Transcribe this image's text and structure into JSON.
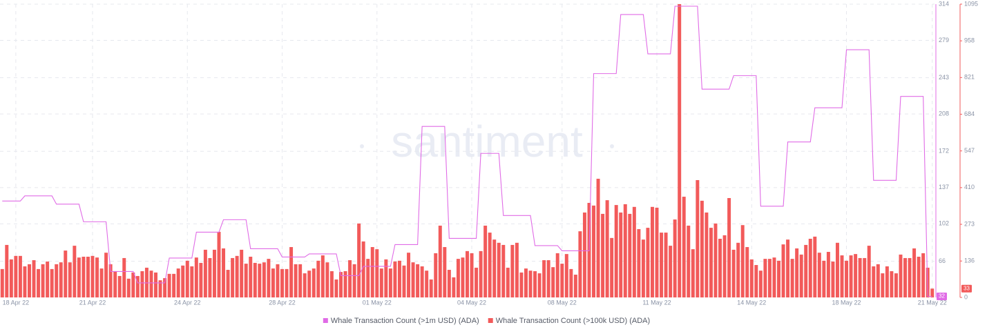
{
  "chart_data": {
    "type": "bar",
    "watermark": "santiment",
    "categories": [
      null,
      null,
      null,
      "18 Apr 22",
      null,
      null,
      null,
      null,
      null,
      null,
      null,
      null,
      null,
      null,
      null,
      null,
      null,
      null,
      null,
      null,
      "21 Apr 22",
      null,
      null,
      null,
      null,
      null,
      null,
      null,
      null,
      null,
      null,
      null,
      null,
      null,
      null,
      null,
      null,
      null,
      null,
      null,
      null,
      "24 Apr 22",
      null,
      null,
      null,
      null,
      null,
      null,
      null,
      null,
      null,
      null,
      null,
      null,
      null,
      null,
      null,
      null,
      null,
      null,
      null,
      null,
      "28 Apr 22",
      null,
      null,
      null,
      null,
      null,
      null,
      null,
      null,
      null,
      null,
      null,
      null,
      null,
      null,
      null,
      null,
      null,
      null,
      null,
      null,
      "01 May 22",
      null,
      null,
      null,
      null,
      null,
      null,
      null,
      null,
      null,
      null,
      null,
      null,
      null,
      null,
      null,
      null,
      null,
      null,
      null,
      null,
      "04 May 22",
      null,
      null,
      null,
      null,
      null,
      null,
      null,
      null,
      null,
      null,
      null,
      null,
      null,
      null,
      null,
      null,
      null,
      null,
      null,
      "08 May 22",
      null,
      null,
      null,
      null,
      null,
      null,
      null,
      null,
      null,
      null,
      null,
      null,
      null,
      null,
      null,
      null,
      null,
      null,
      null,
      null,
      "11 May 22",
      null,
      null,
      null,
      null,
      null,
      null,
      null,
      null,
      null,
      null,
      null,
      null,
      null,
      null,
      null,
      null,
      null,
      null,
      null,
      null,
      "14 May 22",
      null,
      null,
      null,
      null,
      null,
      null,
      null,
      null,
      null,
      null,
      null,
      null,
      null,
      null,
      null,
      null,
      null,
      null,
      null,
      null,
      "18 May 22",
      null,
      null,
      null,
      null,
      null,
      null,
      null,
      null,
      null,
      null,
      null,
      null,
      null,
      null,
      null,
      null,
      null,
      null,
      "21 May 22"
    ],
    "series": [
      {
        "name": "Whale Transaction Count (>1m USD) (ADA)",
        "type": "line",
        "axis": "y",
        "color": "#e06be6",
        "values": [
          124,
          124,
          124,
          124,
          124,
          129,
          129,
          129,
          129,
          129,
          129,
          129,
          121,
          121,
          121,
          121,
          121,
          121,
          104,
          104,
          104,
          104,
          104,
          104,
          56,
          56,
          56,
          56,
          56,
          56,
          45,
          45,
          45,
          45,
          45,
          45,
          45,
          69,
          69,
          69,
          69,
          69,
          69,
          94,
          94,
          94,
          94,
          94,
          94,
          106,
          106,
          106,
          106,
          106,
          106,
          78,
          78,
          78,
          78,
          78,
          78,
          78,
          70,
          70,
          70,
          70,
          70,
          70,
          73,
          73,
          73,
          73,
          73,
          73,
          73,
          52,
          52,
          52,
          52,
          52,
          61,
          61,
          61,
          61,
          61,
          61,
          61,
          82,
          82,
          82,
          82,
          82,
          82,
          196,
          196,
          196,
          196,
          196,
          196,
          88,
          88,
          88,
          88,
          88,
          88,
          88,
          170,
          170,
          170,
          170,
          170,
          110,
          110,
          110,
          110,
          110,
          110,
          110,
          81,
          81,
          81,
          81,
          81,
          81,
          76,
          76,
          76,
          76,
          76,
          76,
          76,
          247,
          247,
          247,
          247,
          247,
          247,
          304,
          304,
          304,
          304,
          304,
          304,
          266,
          266,
          266,
          266,
          266,
          266,
          312,
          312,
          312,
          312,
          312,
          312,
          232,
          232,
          232,
          232,
          232,
          232,
          232,
          245,
          245,
          245,
          245,
          245,
          245,
          119,
          119,
          119,
          119,
          119,
          119,
          181,
          181,
          181,
          181,
          181,
          181,
          214,
          214,
          214,
          214,
          214,
          214,
          214,
          270,
          270,
          270,
          270,
          270,
          270,
          144,
          144,
          144,
          144,
          144,
          144,
          225,
          225,
          225,
          225,
          225,
          225,
          32,
          32
        ]
      },
      {
        "name": "Whale Transaction Count (>100k USD) (ADA)",
        "type": "bar",
        "axis": "y2",
        "color": "#f25a5a",
        "values": [
          106,
          196,
          142,
          155,
          155,
          116,
          124,
          139,
          106,
          124,
          134,
          106,
          124,
          131,
          175,
          131,
          193,
          149,
          152,
          152,
          155,
          149,
          108,
          167,
          124,
          98,
          80,
          147,
          70,
          93,
          80,
          98,
          111,
          100,
          93,
          64,
          72,
          88,
          88,
          108,
          119,
          137,
          116,
          149,
          129,
          178,
          147,
          178,
          245,
          183,
          103,
          147,
          155,
          178,
          126,
          152,
          129,
          126,
          131,
          144,
          108,
          124,
          106,
          106,
          188,
          124,
          124,
          90,
          100,
          108,
          137,
          157,
          131,
          98,
          67,
          95,
          98,
          139,
          124,
          276,
          209,
          144,
          188,
          180,
          108,
          142,
          108,
          134,
          137,
          119,
          167,
          131,
          124,
          116,
          100,
          67,
          165,
          268,
          188,
          103,
          75,
          144,
          149,
          173,
          165,
          111,
          173,
          268,
          242,
          216,
          204,
          196,
          111,
          196,
          204,
          93,
          108,
          100,
          98,
          90,
          139,
          139,
          113,
          165,
          126,
          162,
          106,
          85,
          247,
          317,
          353,
          343,
          443,
          312,
          363,
          222,
          345,
          317,
          348,
          312,
          338,
          255,
          216,
          260,
          338,
          335,
          242,
          242,
          193,
          291,
          1095,
          376,
          268,
          180,
          438,
          361,
          317,
          260,
          276,
          219,
          232,
          371,
          178,
          204,
          270,
          188,
          142,
          121,
          100,
          144,
          144,
          149,
          137,
          198,
          216,
          144,
          183,
          160,
          196,
          219,
          227,
          167,
          137,
          170,
          134,
          204,
          157,
          137,
          157,
          162,
          147,
          147,
          193,
          116,
          124,
          90,
          116,
          98,
          90,
          160,
          147,
          147,
          183,
          152,
          165,
          111,
          33
        ]
      }
    ],
    "ylim": [
      31,
      314
    ],
    "yticks": [
      66,
      102,
      137,
      172,
      208,
      243,
      279,
      314
    ],
    "y2lim": [
      0,
      1095
    ],
    "y2ticks": [
      0,
      136,
      273,
      410,
      547,
      684,
      821,
      958,
      1095
    ],
    "grid": true,
    "legend": "bottom"
  }
}
